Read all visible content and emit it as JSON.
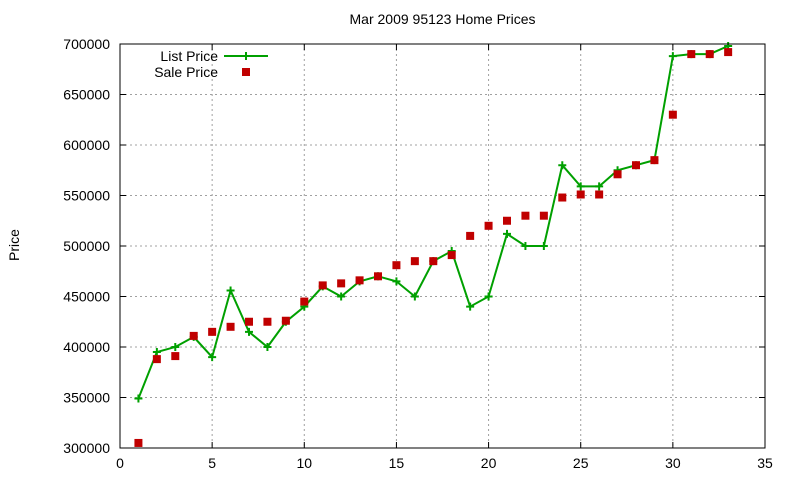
{
  "chart_data": {
    "type": "line",
    "title": "Mar 2009 95123 Home Prices",
    "xlabel": "",
    "ylabel": "Price",
    "xlim": [
      0,
      35
    ],
    "ylim": [
      300000,
      700000
    ],
    "x_ticks": [
      0,
      5,
      10,
      15,
      20,
      25,
      30,
      35
    ],
    "y_ticks": [
      300000,
      350000,
      400000,
      450000,
      500000,
      550000,
      600000,
      650000,
      700000
    ],
    "grid": true,
    "legend_position": "top-left",
    "series": [
      {
        "name": "List Price",
        "style": "line+plus-markers",
        "color": "#00a000",
        "points": [
          [
            1,
            349000
          ],
          [
            2,
            395000
          ],
          [
            3,
            400000
          ],
          [
            4,
            410000
          ],
          [
            5,
            390000
          ],
          [
            6,
            456000
          ],
          [
            7,
            415000
          ],
          [
            8,
            400000
          ],
          [
            9,
            425000
          ],
          [
            10,
            440000
          ],
          [
            11,
            460000
          ],
          [
            12,
            450000
          ],
          [
            13,
            465000
          ],
          [
            14,
            470000
          ],
          [
            15,
            465000
          ],
          [
            16,
            450000
          ],
          [
            17,
            485000
          ],
          [
            18,
            495000
          ],
          [
            19,
            440000
          ],
          [
            20,
            450000
          ],
          [
            21,
            512000
          ],
          [
            22,
            500000
          ],
          [
            23,
            500000
          ],
          [
            24,
            580000
          ],
          [
            25,
            559000
          ],
          [
            26,
            559000
          ],
          [
            27,
            575000
          ],
          [
            28,
            580000
          ],
          [
            29,
            585000
          ],
          [
            30,
            688000
          ],
          [
            31,
            690000
          ],
          [
            32,
            690000
          ],
          [
            33,
            698000
          ]
        ]
      },
      {
        "name": "Sale Price",
        "style": "square-markers",
        "color": "#c00000",
        "points": [
          [
            1,
            305000
          ],
          [
            2,
            388000
          ],
          [
            3,
            391000
          ],
          [
            4,
            411000
          ],
          [
            5,
            415000
          ],
          [
            6,
            420000
          ],
          [
            7,
            425000
          ],
          [
            8,
            425000
          ],
          [
            9,
            426000
          ],
          [
            10,
            445000
          ],
          [
            11,
            461000
          ],
          [
            12,
            463000
          ],
          [
            13,
            466000
          ],
          [
            14,
            470000
          ],
          [
            15,
            481000
          ],
          [
            16,
            485000
          ],
          [
            17,
            485000
          ],
          [
            18,
            491000
          ],
          [
            19,
            510000
          ],
          [
            20,
            520000
          ],
          [
            21,
            525000
          ],
          [
            22,
            530000
          ],
          [
            23,
            530000
          ],
          [
            24,
            548000
          ],
          [
            25,
            551000
          ],
          [
            26,
            551000
          ],
          [
            27,
            571000
          ],
          [
            28,
            580000
          ],
          [
            29,
            585000
          ],
          [
            30,
            630000
          ],
          [
            31,
            690000
          ],
          [
            32,
            690000
          ],
          [
            33,
            692000
          ]
        ]
      }
    ]
  }
}
